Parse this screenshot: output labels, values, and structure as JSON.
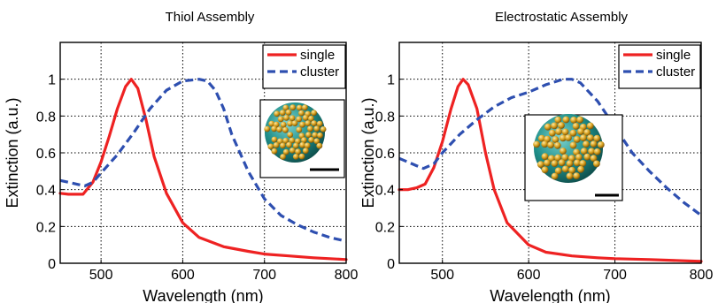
{
  "chart_data": [
    {
      "type": "line",
      "title": "Thiol Assembly",
      "xlabel": "Wavelength (nm)",
      "ylabel": "Extinction (a.u.)",
      "xlim": [
        450,
        800
      ],
      "ylim": [
        0,
        1.2
      ],
      "xticks": [
        500,
        600,
        700,
        800
      ],
      "yticks": [
        0,
        0.2,
        0.4,
        0.6,
        0.8,
        1
      ],
      "xtick_labels": [
        "500",
        "600",
        "700",
        "800"
      ],
      "ytick_labels": [
        "0",
        "0.2",
        "0.4",
        "0.6",
        "0.8",
        "1"
      ],
      "grid": true,
      "legend_position": "top-right",
      "inset_image": "nanoparticle-cluster rendering with scale bar",
      "series": [
        {
          "name": "single",
          "color": "#ee2222",
          "style": "solid",
          "x": [
            450,
            460,
            470,
            478,
            490,
            500,
            510,
            520,
            530,
            537,
            545,
            555,
            565,
            580,
            600,
            620,
            650,
            680,
            700,
            730,
            760,
            800
          ],
          "y": [
            0.38,
            0.375,
            0.375,
            0.375,
            0.44,
            0.55,
            0.69,
            0.84,
            0.96,
            1.0,
            0.95,
            0.78,
            0.58,
            0.38,
            0.22,
            0.14,
            0.09,
            0.065,
            0.05,
            0.04,
            0.03,
            0.02
          ]
        },
        {
          "name": "cluster",
          "color": "#2e4fb0",
          "style": "dashed",
          "x": [
            450,
            460,
            470,
            480,
            490,
            500,
            520,
            540,
            560,
            580,
            600,
            620,
            630,
            640,
            650,
            660,
            680,
            700,
            720,
            740,
            760,
            780,
            800
          ],
          "y": [
            0.45,
            0.44,
            0.43,
            0.42,
            0.44,
            0.49,
            0.59,
            0.71,
            0.84,
            0.94,
            0.99,
            1.0,
            0.99,
            0.94,
            0.84,
            0.7,
            0.5,
            0.35,
            0.26,
            0.21,
            0.17,
            0.14,
            0.12
          ]
        }
      ]
    },
    {
      "type": "line",
      "title": "Electrostatic Assembly",
      "xlabel": "Wavelength (nm)",
      "ylabel": "Extinction (a.u.)",
      "xlim": [
        450,
        800
      ],
      "ylim": [
        0,
        1.2
      ],
      "xticks": [
        500,
        600,
        700,
        800
      ],
      "yticks": [
        0,
        0.2,
        0.4,
        0.6,
        0.8,
        1
      ],
      "xtick_labels": [
        "500",
        "600",
        "700",
        "800"
      ],
      "ytick_labels": [
        "0",
        "0.2",
        "0.4",
        "0.6",
        "0.8",
        "1"
      ],
      "grid": true,
      "legend_position": "top-right",
      "inset_image": "nanoparticle-cluster rendering with scale bar",
      "series": [
        {
          "name": "single",
          "color": "#ee2222",
          "style": "solid",
          "x": [
            450,
            460,
            470,
            480,
            490,
            500,
            510,
            518,
            524,
            530,
            540,
            550,
            560,
            575,
            600,
            620,
            650,
            680,
            700,
            740,
            800
          ],
          "y": [
            0.4,
            0.4,
            0.41,
            0.43,
            0.52,
            0.66,
            0.84,
            0.96,
            1.0,
            0.97,
            0.84,
            0.6,
            0.4,
            0.22,
            0.1,
            0.06,
            0.04,
            0.03,
            0.025,
            0.02,
            0.01
          ]
        },
        {
          "name": "cluster",
          "color": "#2e4fb0",
          "style": "dashed",
          "x": [
            450,
            460,
            470,
            478,
            490,
            500,
            520,
            540,
            560,
            580,
            600,
            620,
            640,
            650,
            660,
            680,
            700,
            720,
            740,
            760,
            780,
            800
          ],
          "y": [
            0.57,
            0.55,
            0.53,
            0.515,
            0.54,
            0.6,
            0.7,
            0.78,
            0.85,
            0.9,
            0.93,
            0.97,
            1.0,
            1.0,
            0.98,
            0.88,
            0.74,
            0.6,
            0.5,
            0.41,
            0.33,
            0.26
          ]
        }
      ]
    }
  ]
}
